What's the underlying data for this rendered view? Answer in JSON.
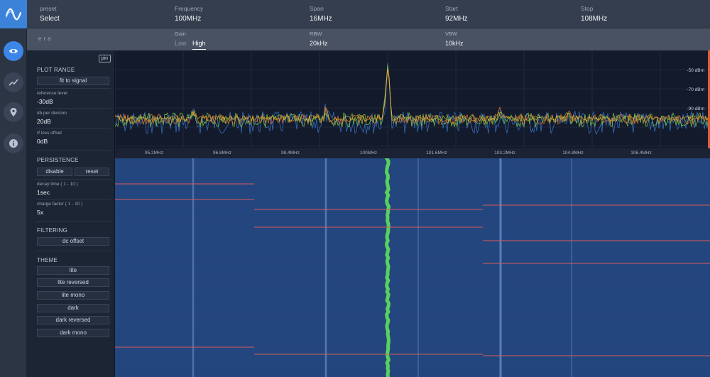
{
  "header": {
    "preset": {
      "label": "preset",
      "value": "Select"
    },
    "frequency": {
      "label": "Frequency",
      "value": "100MHz"
    },
    "span": {
      "label": "Span",
      "value": "16MHz"
    },
    "start": {
      "label": "Start",
      "value": "92MHz"
    },
    "stop": {
      "label": "Stop",
      "value": "108MHz"
    }
  },
  "subheader": {
    "era": "era",
    "gain": {
      "label": "Gain",
      "low": "Low",
      "high": "High",
      "selected": "High"
    },
    "rbw": {
      "label": "RBW",
      "value": "20kHz"
    },
    "vbw": {
      "label": "VBW",
      "value": "10kHz"
    }
  },
  "sidebar": {
    "icons": [
      "eye-icon",
      "chart-line-icon",
      "map-pin-icon",
      "info-icon"
    ],
    "active": "eye-icon"
  },
  "panel": {
    "pin": "pin",
    "plot_range": {
      "title": "PLOT RANGE",
      "fit": "fit to signal",
      "ref_label": "reference level",
      "ref_value": "-30dB",
      "div_label": "db per division",
      "div_value": "20dB",
      "offset_label": "rf loss offset",
      "offset_value": "0dB"
    },
    "persistence": {
      "title": "PERSISTENCE",
      "disable": "disable",
      "reset": "reset",
      "decay_label": "decay time ( 1 - 10 )",
      "decay_value": "1sec",
      "charge_label": "charge factor ( 1 - 10 )",
      "charge_value": "5x"
    },
    "filtering": {
      "title": "FILTERING",
      "dc": "dc offset"
    },
    "theme": {
      "title": "THEME",
      "options": [
        "lite",
        "lite reversed",
        "lite mono",
        "dark",
        "dark reversed",
        "dark mono"
      ]
    }
  },
  "spectrum": {
    "dbm_labels": [
      "-50 dBm",
      "-70 dBm",
      "-90 dBm"
    ],
    "freq_ticks": [
      "95.2MHz",
      "96.8MHz",
      "98.4MHz",
      "100MHz",
      "101.6MHz",
      "103.2MHz",
      "104.8MHz",
      "106.4MHz"
    ],
    "colors": {
      "background": "#131a2b",
      "grid": "#2a3346",
      "trace_low": "#3b7dd8",
      "trace_mid": "#7fd34a",
      "trace_high": "#e77a2f",
      "peak": "#e8c832"
    }
  },
  "waterfall": {
    "colors": {
      "base": "#24467e",
      "signal": "#5fe05a",
      "marker": "#d85a5a"
    }
  }
}
